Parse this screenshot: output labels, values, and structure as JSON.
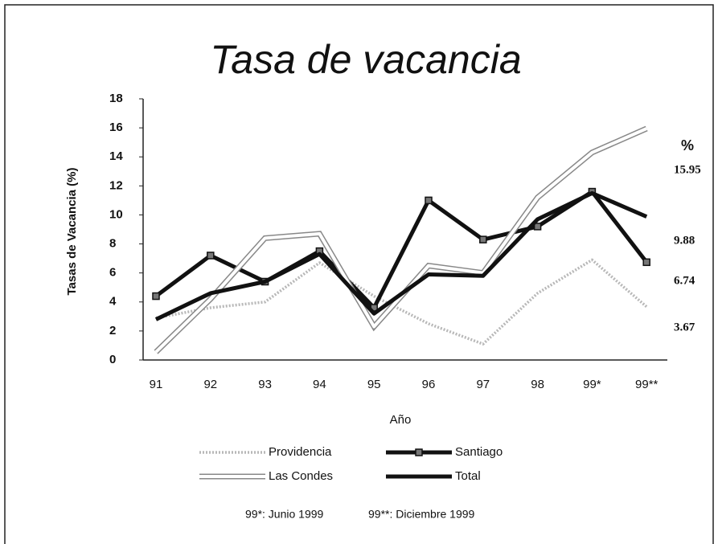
{
  "chart_data": {
    "type": "line",
    "title": "Tasa de vacancia",
    "x_label": "Año",
    "y_label": "Tasas de Vacancia (%)",
    "unit_label": "%",
    "categories": [
      "91",
      "92",
      "93",
      "94",
      "95",
      "96",
      "97",
      "98",
      "99*",
      "99**"
    ],
    "ylim": [
      0,
      18
    ],
    "yticks": [
      0,
      2,
      4,
      6,
      8,
      10,
      12,
      14,
      16,
      18
    ],
    "series": [
      {
        "name": "Providencia",
        "color": "#b8b8b8",
        "dash": "dotted",
        "values": [
          2.9,
          3.6,
          4.0,
          6.7,
          4.4,
          2.5,
          1.1,
          4.6,
          6.9,
          3.67
        ]
      },
      {
        "name": "Santiago",
        "color": "#111111",
        "marker": "square",
        "values": [
          4.4,
          7.2,
          5.4,
          7.5,
          3.6,
          11.0,
          8.3,
          9.2,
          11.6,
          6.74
        ]
      },
      {
        "name": "Las Condes",
        "color": "#ffffff",
        "outline": "#888888",
        "values": [
          0.55,
          4.2,
          8.4,
          8.7,
          2.3,
          6.5,
          6.0,
          11.2,
          14.3,
          15.95
        ]
      },
      {
        "name": "Total",
        "color": "#111111",
        "values": [
          2.8,
          4.6,
          5.4,
          7.3,
          3.2,
          5.9,
          5.8,
          9.7,
          11.5,
          9.88
        ]
      }
    ],
    "notes": [
      "99*: Junio 1999",
      "99**: Diciembre 1999"
    ]
  }
}
